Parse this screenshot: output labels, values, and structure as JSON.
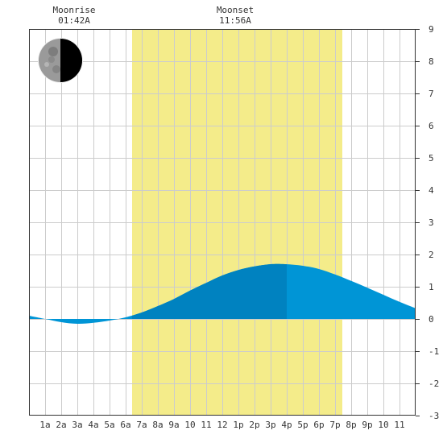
{
  "moon": {
    "rise_label": "Moonrise",
    "rise_time": "01:42A",
    "set_label": "Moonset",
    "set_time": "11:56A",
    "phase_icon": "last-quarter-moon-icon"
  },
  "chart_data": {
    "type": "area",
    "title": "",
    "xlabel": "",
    "ylabel": "",
    "xlim": [
      0,
      24
    ],
    "ylim": [
      -3,
      9
    ],
    "grid": true,
    "x_ticks": [
      {
        "x": 1,
        "label": "1a"
      },
      {
        "x": 2,
        "label": "2a"
      },
      {
        "x": 3,
        "label": "3a"
      },
      {
        "x": 4,
        "label": "4a"
      },
      {
        "x": 5,
        "label": "5a"
      },
      {
        "x": 6,
        "label": "6a"
      },
      {
        "x": 7,
        "label": "7a"
      },
      {
        "x": 8,
        "label": "8a"
      },
      {
        "x": 9,
        "label": "9a"
      },
      {
        "x": 10,
        "label": "10"
      },
      {
        "x": 11,
        "label": "11"
      },
      {
        "x": 12,
        "label": "12"
      },
      {
        "x": 13,
        "label": "1p"
      },
      {
        "x": 14,
        "label": "2p"
      },
      {
        "x": 15,
        "label": "3p"
      },
      {
        "x": 16,
        "label": "4p"
      },
      {
        "x": 17,
        "label": "5p"
      },
      {
        "x": 18,
        "label": "6p"
      },
      {
        "x": 19,
        "label": "7p"
      },
      {
        "x": 20,
        "label": "8p"
      },
      {
        "x": 21,
        "label": "9p"
      },
      {
        "x": 22,
        "label": "10"
      },
      {
        "x": 23,
        "label": "11"
      }
    ],
    "y_ticks": [
      -3,
      -2,
      -1,
      0,
      1,
      2,
      3,
      4,
      5,
      6,
      7,
      8,
      9
    ],
    "daylight": [
      6.4,
      19.45
    ],
    "highlight_until": 16.0,
    "series": [
      {
        "x": [
          0,
          1,
          2,
          3,
          4,
          5,
          6,
          7,
          8,
          9,
          10,
          11,
          12,
          13,
          14,
          15,
          15.9,
          17,
          18,
          19,
          20,
          21,
          22,
          23,
          24
        ],
        "y": [
          0.1,
          0.0,
          -0.1,
          -0.15,
          -0.12,
          -0.05,
          0.05,
          0.2,
          0.4,
          0.62,
          0.88,
          1.12,
          1.35,
          1.52,
          1.63,
          1.7,
          1.7,
          1.65,
          1.55,
          1.38,
          1.18,
          0.97,
          0.75,
          0.53,
          0.33
        ]
      }
    ],
    "colors": {
      "daylight": "#f4ec8a",
      "tide": "#0095d6",
      "tide_highlight": "#0082c0",
      "grid": "#cccccc",
      "axis": "#333333"
    }
  }
}
